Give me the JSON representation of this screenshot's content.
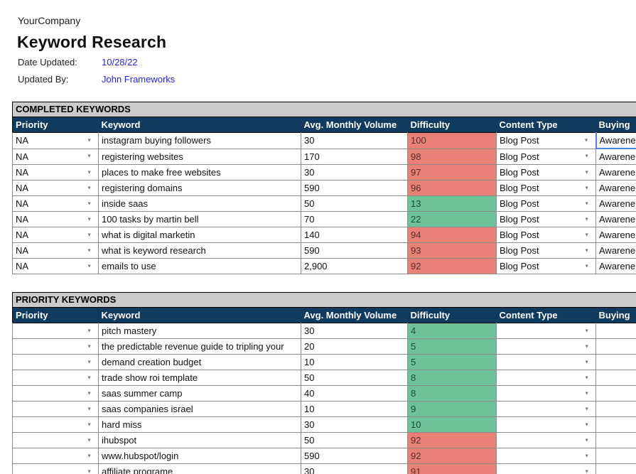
{
  "page": {
    "company": "YourCompany",
    "title": "Keyword Research",
    "date_updated_label": "Date Updated:",
    "date_updated_value": "10/28/22",
    "updated_by_label": "Updated By:",
    "updated_by_value": "John Frameworks"
  },
  "colors": {
    "header_navy": "#103a5e",
    "title_bar_gray": "#cbcbcb",
    "difficulty_red": "#e98077",
    "difficulty_green": "#6dc397",
    "link_blue": "#2727dd",
    "selection_blue": "#4a86e8"
  },
  "icons": {
    "dropdown_arrow": "▼"
  },
  "tables": [
    {
      "title": "COMPLETED KEYWORDS",
      "columns": [
        "Priority",
        "Keyword",
        "Avg. Monthly Volume",
        "Difficulty",
        "Content Type",
        "Buying"
      ],
      "rows": [
        {
          "priority": "NA",
          "keyword": "instagram buying followers",
          "volume": "30",
          "difficulty": "100",
          "difficulty_color": "red",
          "content_type": "Blog Post",
          "buying": "Awarene",
          "selected": true
        },
        {
          "priority": "NA",
          "keyword": "registering websites",
          "volume": "170",
          "difficulty": "98",
          "difficulty_color": "red",
          "content_type": "Blog Post",
          "buying": "Awarene",
          "selected": false
        },
        {
          "priority": "NA",
          "keyword": "places to make free websites",
          "volume": "30",
          "difficulty": "97",
          "difficulty_color": "red",
          "content_type": "Blog Post",
          "buying": "Awarene",
          "selected": false
        },
        {
          "priority": "NA",
          "keyword": "registering domains",
          "volume": "590",
          "difficulty": "96",
          "difficulty_color": "red",
          "content_type": "Blog Post",
          "buying": "Awarene",
          "selected": false
        },
        {
          "priority": "NA",
          "keyword": "inside saas",
          "volume": "50",
          "difficulty": "13",
          "difficulty_color": "green",
          "content_type": "Blog Post",
          "buying": "Awarene",
          "selected": false
        },
        {
          "priority": "NA",
          "keyword": "100 tasks by martin bell",
          "volume": "70",
          "difficulty": "22",
          "difficulty_color": "green",
          "content_type": "Blog Post",
          "buying": "Awarene",
          "selected": false
        },
        {
          "priority": "NA",
          "keyword": "what is digital marketin",
          "volume": "140",
          "difficulty": "94",
          "difficulty_color": "red",
          "content_type": "Blog Post",
          "buying": "Awarene",
          "selected": false
        },
        {
          "priority": "NA",
          "keyword": "what is keyword research",
          "volume": "590",
          "difficulty": "93",
          "difficulty_color": "red",
          "content_type": "Blog Post",
          "buying": "Awarene",
          "selected": false
        },
        {
          "priority": "NA",
          "keyword": "emails to use",
          "volume": "2,900",
          "difficulty": "92",
          "difficulty_color": "red",
          "content_type": "Blog Post",
          "buying": "Awarene",
          "selected": false
        }
      ]
    },
    {
      "title": "PRIORITY KEYWORDS",
      "columns": [
        "Priority",
        "Keyword",
        "Avg. Monthly Volume",
        "Difficulty",
        "Content Type",
        "Buying"
      ],
      "rows": [
        {
          "priority": "",
          "keyword": "pitch mastery",
          "volume": "30",
          "difficulty": "4",
          "difficulty_color": "green",
          "content_type": "",
          "buying": "",
          "selected": false
        },
        {
          "priority": "",
          "keyword": "the predictable revenue guide to tripling your",
          "volume": "20",
          "difficulty": "5",
          "difficulty_color": "green",
          "content_type": "",
          "buying": "",
          "selected": false
        },
        {
          "priority": "",
          "keyword": "demand creation budget",
          "volume": "10",
          "difficulty": "5",
          "difficulty_color": "green",
          "content_type": "",
          "buying": "",
          "selected": false
        },
        {
          "priority": "",
          "keyword": "trade show roi template",
          "volume": "50",
          "difficulty": "8",
          "difficulty_color": "green",
          "content_type": "",
          "buying": "",
          "selected": false
        },
        {
          "priority": "",
          "keyword": "saas summer camp",
          "volume": "40",
          "difficulty": "8",
          "difficulty_color": "green",
          "content_type": "",
          "buying": "",
          "selected": false
        },
        {
          "priority": "",
          "keyword": "saas companies israel",
          "volume": "10",
          "difficulty": "9",
          "difficulty_color": "green",
          "content_type": "",
          "buying": "",
          "selected": false
        },
        {
          "priority": "",
          "keyword": "hard miss",
          "volume": "30",
          "difficulty": "10",
          "difficulty_color": "green",
          "content_type": "",
          "buying": "",
          "selected": false
        },
        {
          "priority": "",
          "keyword": "ihubspot",
          "volume": "50",
          "difficulty": "92",
          "difficulty_color": "red",
          "content_type": "",
          "buying": "",
          "selected": false
        },
        {
          "priority": "",
          "keyword": "www.hubspot/login",
          "volume": "590",
          "difficulty": "92",
          "difficulty_color": "red",
          "content_type": "",
          "buying": "",
          "selected": false
        },
        {
          "priority": "",
          "keyword": "affiliate programe",
          "volume": "30",
          "difficulty": "91",
          "difficulty_color": "red",
          "content_type": "",
          "buying": "",
          "selected": false
        }
      ]
    }
  ]
}
